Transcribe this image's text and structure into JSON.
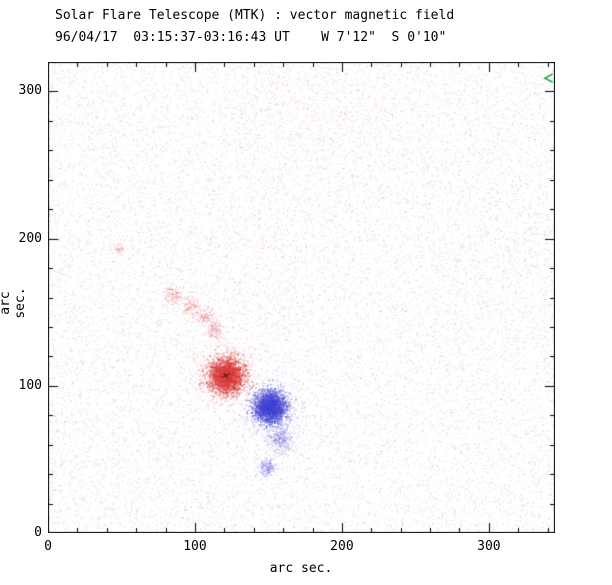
{
  "chart_data": {
    "type": "scatter",
    "title": "Solar Flare Telescope (MTK) : vector magnetic field",
    "subtitle": "96/04/17  03:15:37-03:16:43 UT    W 7'12\"  S 0'10\"",
    "xlabel": "arc sec.",
    "ylabel": "arc sec.",
    "xlim": [
      0,
      345
    ],
    "ylim": [
      0,
      320
    ],
    "xticks": [
      0,
      100,
      200,
      300
    ],
    "yticks": [
      0,
      100,
      200,
      300
    ],
    "minor_tick_step": 20,
    "grid": false,
    "legend": null,
    "colors": {
      "positive": "#d63a38",
      "negative": "#4040d2",
      "axis": "#000000",
      "background": "#ffffff",
      "vector_mark": "#00a020"
    },
    "noise": {
      "count": 22000,
      "positive_fraction": 0.5,
      "min_alpha": 0.05,
      "max_alpha": 0.3
    },
    "features": [
      {
        "name": "positive-pole-core",
        "polarity": "positive",
        "x": 121,
        "y": 107,
        "sigma": 6,
        "count": 2600,
        "alpha": 0.6,
        "dot": 1.3
      },
      {
        "name": "positive-pole-fringe",
        "polarity": "positive",
        "x": 120,
        "y": 108,
        "sigma": 11,
        "count": 700,
        "alpha": 0.3,
        "dot": 1
      },
      {
        "name": "positive-trail-1",
        "polarity": "positive",
        "x": 113,
        "y": 138,
        "sigma": 3,
        "count": 140,
        "alpha": 0.45,
        "dot": 1
      },
      {
        "name": "positive-trail-2",
        "polarity": "positive",
        "x": 106,
        "y": 147,
        "sigma": 3,
        "count": 120,
        "alpha": 0.45,
        "dot": 1
      },
      {
        "name": "positive-trail-3",
        "polarity": "positive",
        "x": 97,
        "y": 154,
        "sigma": 3.5,
        "count": 150,
        "alpha": 0.4,
        "dot": 1
      },
      {
        "name": "positive-trail-4",
        "polarity": "positive",
        "x": 85,
        "y": 162,
        "sigma": 3,
        "count": 130,
        "alpha": 0.45,
        "dot": 1
      },
      {
        "name": "positive-speck-west",
        "polarity": "positive",
        "x": 48,
        "y": 194,
        "sigma": 2,
        "count": 50,
        "alpha": 0.4,
        "dot": 1
      },
      {
        "name": "positive-haze-top",
        "polarity": "positive",
        "x": 185,
        "y": 290,
        "sigma": 42,
        "count": 2400,
        "alpha": 0.12,
        "dot": 1
      },
      {
        "name": "positive-haze-mid",
        "polarity": "positive",
        "x": 135,
        "y": 150,
        "sigma": 30,
        "count": 800,
        "alpha": 0.08,
        "dot": 1
      },
      {
        "name": "positive-haze-left",
        "polarity": "positive",
        "x": 60,
        "y": 230,
        "sigma": 40,
        "count": 900,
        "alpha": 0.07,
        "dot": 1
      },
      {
        "name": "negative-pole-core",
        "polarity": "negative",
        "x": 151,
        "y": 86,
        "sigma": 5.5,
        "count": 2300,
        "alpha": 0.6,
        "dot": 1.3
      },
      {
        "name": "negative-pole-fringe",
        "polarity": "negative",
        "x": 152,
        "y": 82,
        "sigma": 10,
        "sigma_y": 13,
        "count": 700,
        "alpha": 0.3,
        "dot": 1
      },
      {
        "name": "negative-tail",
        "polarity": "negative",
        "x": 158,
        "y": 64,
        "sigma": 4,
        "count": 350,
        "alpha": 0.4,
        "dot": 1
      },
      {
        "name": "negative-patch-south",
        "polarity": "negative",
        "x": 149,
        "y": 45,
        "sigma": 3,
        "count": 220,
        "alpha": 0.45,
        "dot": 1
      },
      {
        "name": "negative-haze-right",
        "polarity": "negative",
        "x": 320,
        "y": 160,
        "sigma": 55,
        "count": 2000,
        "alpha": 0.09,
        "dot": 1
      },
      {
        "name": "negative-haze-topright",
        "polarity": "negative",
        "x": 300,
        "y": 280,
        "sigma": 35,
        "count": 700,
        "alpha": 0.08,
        "dot": 1
      },
      {
        "name": "negative-haze-bottomleft",
        "polarity": "negative",
        "x": 60,
        "y": 30,
        "sigma": 30,
        "count": 500,
        "alpha": 0.08,
        "dot": 1
      }
    ],
    "core_marks": [
      {
        "name": "vector-arrows-dark-core",
        "x": 121,
        "y": 107
      }
    ],
    "annotations": [
      {
        "name": "green-vector-mark",
        "x": 340,
        "y": 309,
        "color": "#00a020"
      }
    ]
  }
}
